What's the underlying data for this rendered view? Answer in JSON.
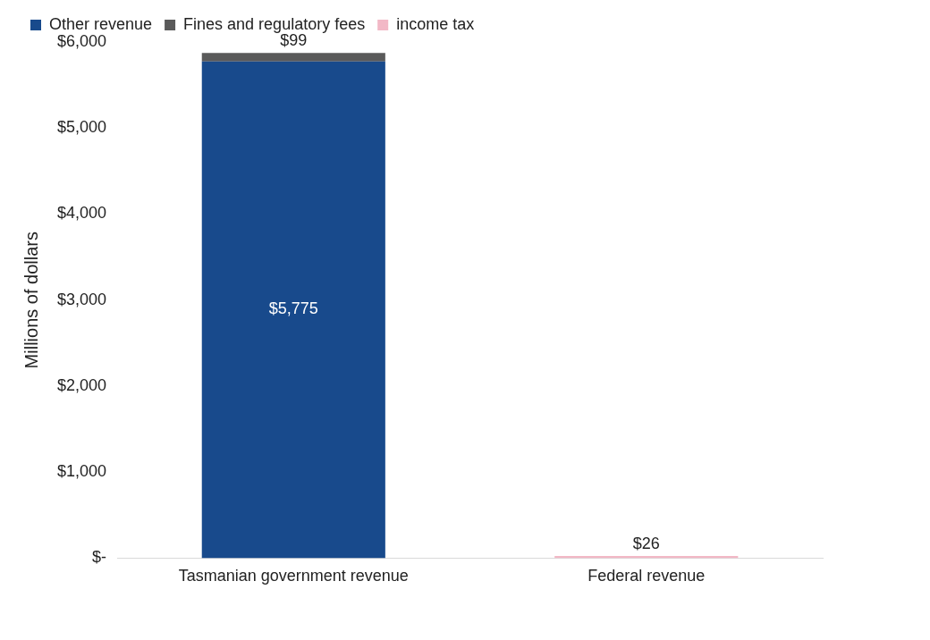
{
  "chart_data": {
    "type": "bar",
    "stacked": true,
    "ylabel": "Millions of dollars",
    "categories": [
      "Tasmanian government revenue",
      "Federal revenue"
    ],
    "series": [
      {
        "name": "Other revenue",
        "color": "#184a8c",
        "values": [
          5775,
          null
        ],
        "value_labels": [
          "$5,775",
          null
        ]
      },
      {
        "name": "Fines and regulatory fees",
        "color": "#5a5a5a",
        "values": [
          99,
          null
        ],
        "value_labels": [
          "$99",
          null
        ]
      },
      {
        "name": "income tax",
        "color": "#f2b8c6",
        "values": [
          null,
          26
        ],
        "value_labels": [
          null,
          "$26"
        ]
      }
    ],
    "ylim": [
      0,
      6000
    ],
    "yticks": [
      {
        "value": 0,
        "label": "$-"
      },
      {
        "value": 1000,
        "label": "$1,000"
      },
      {
        "value": 2000,
        "label": "$2,000"
      },
      {
        "value": 3000,
        "label": "$3,000"
      },
      {
        "value": 4000,
        "label": "$4,000"
      },
      {
        "value": 5000,
        "label": "$5,000"
      },
      {
        "value": 6000,
        "label": "$6,000"
      }
    ],
    "grid": false,
    "legend": "top"
  }
}
